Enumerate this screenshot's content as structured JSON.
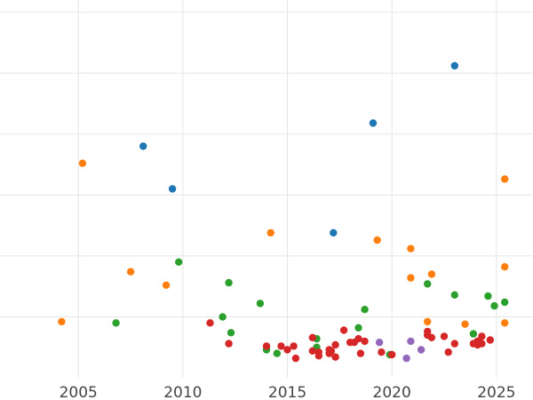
{
  "chart_data": {
    "type": "scatter",
    "title": "",
    "xlabel": "",
    "ylabel": "",
    "xlim": [
      2001.25,
      2026.75
    ],
    "ylim": [
      0,
      31
    ],
    "x_ticks": [
      {
        "value": 2005,
        "label": "2005"
      },
      {
        "value": 2010,
        "label": "2010"
      },
      {
        "value": 2015,
        "label": "2015"
      },
      {
        "value": 2020,
        "label": "2020"
      },
      {
        "value": 2025,
        "label": "2025"
      }
    ],
    "y_gridlines": [
      5,
      10,
      15,
      20,
      25,
      30
    ],
    "grid": true,
    "legend": "none",
    "series": [
      {
        "color": "#1f77b4",
        "points": [
          {
            "x": 2008.1,
            "y": 19.0
          },
          {
            "x": 2009.5,
            "y": 15.5
          },
          {
            "x": 2017.2,
            "y": 11.9
          },
          {
            "x": 2019.1,
            "y": 20.9
          },
          {
            "x": 2023.0,
            "y": 25.6
          }
        ]
      },
      {
        "color": "#ff7f0e",
        "points": [
          {
            "x": 2004.2,
            "y": 4.6
          },
          {
            "x": 2005.2,
            "y": 17.6
          },
          {
            "x": 2007.5,
            "y": 8.7
          },
          {
            "x": 2009.2,
            "y": 7.6
          },
          {
            "x": 2014.2,
            "y": 11.9
          },
          {
            "x": 2019.3,
            "y": 11.3
          },
          {
            "x": 2020.9,
            "y": 10.6
          },
          {
            "x": 2020.9,
            "y": 8.2
          },
          {
            "x": 2021.7,
            "y": 4.6
          },
          {
            "x": 2021.9,
            "y": 8.5
          },
          {
            "x": 2023.5,
            "y": 4.4
          },
          {
            "x": 2025.4,
            "y": 16.3
          },
          {
            "x": 2025.4,
            "y": 9.1
          },
          {
            "x": 2025.4,
            "y": 4.5
          }
        ]
      },
      {
        "color": "#2ca02c",
        "points": [
          {
            "x": 2006.8,
            "y": 4.5
          },
          {
            "x": 2009.8,
            "y": 9.5
          },
          {
            "x": 2011.9,
            "y": 5.0
          },
          {
            "x": 2012.2,
            "y": 7.8
          },
          {
            "x": 2012.3,
            "y": 3.7
          },
          {
            "x": 2013.7,
            "y": 6.1
          },
          {
            "x": 2014.0,
            "y": 2.3
          },
          {
            "x": 2014.5,
            "y": 2.0
          },
          {
            "x": 2016.4,
            "y": 3.2
          },
          {
            "x": 2016.4,
            "y": 2.5
          },
          {
            "x": 2018.4,
            "y": 4.1
          },
          {
            "x": 2018.7,
            "y": 5.6
          },
          {
            "x": 2019.9,
            "y": 1.9
          },
          {
            "x": 2021.7,
            "y": 7.7
          },
          {
            "x": 2023.0,
            "y": 6.8
          },
          {
            "x": 2023.9,
            "y": 3.6
          },
          {
            "x": 2024.6,
            "y": 6.7
          },
          {
            "x": 2024.9,
            "y": 5.9
          },
          {
            "x": 2025.4,
            "y": 6.2
          }
        ]
      },
      {
        "color": "#d62728",
        "points": [
          {
            "x": 2011.3,
            "y": 4.5
          },
          {
            "x": 2012.2,
            "y": 2.8
          },
          {
            "x": 2014.0,
            "y": 2.6
          },
          {
            "x": 2014.7,
            "y": 2.6
          },
          {
            "x": 2015.0,
            "y": 2.3
          },
          {
            "x": 2015.3,
            "y": 2.6
          },
          {
            "x": 2015.4,
            "y": 1.6
          },
          {
            "x": 2016.2,
            "y": 2.2
          },
          {
            "x": 2016.2,
            "y": 3.3
          },
          {
            "x": 2016.5,
            "y": 1.8
          },
          {
            "x": 2016.5,
            "y": 2.1
          },
          {
            "x": 2017.0,
            "y": 2.0
          },
          {
            "x": 2017.0,
            "y": 2.3
          },
          {
            "x": 2017.1,
            "y": 2.2
          },
          {
            "x": 2017.3,
            "y": 1.7
          },
          {
            "x": 2017.3,
            "y": 2.7
          },
          {
            "x": 2017.7,
            "y": 3.9
          },
          {
            "x": 2018.0,
            "y": 2.9
          },
          {
            "x": 2018.2,
            "y": 2.9
          },
          {
            "x": 2018.4,
            "y": 3.2
          },
          {
            "x": 2018.5,
            "y": 2.0
          },
          {
            "x": 2018.7,
            "y": 3.0
          },
          {
            "x": 2019.5,
            "y": 2.1
          },
          {
            "x": 2020.0,
            "y": 1.9
          },
          {
            "x": 2021.7,
            "y": 3.8
          },
          {
            "x": 2021.7,
            "y": 3.5
          },
          {
            "x": 2021.9,
            "y": 3.3
          },
          {
            "x": 2022.5,
            "y": 3.4
          },
          {
            "x": 2022.7,
            "y": 2.1
          },
          {
            "x": 2023.0,
            "y": 2.8
          },
          {
            "x": 2023.9,
            "y": 2.8
          },
          {
            "x": 2024.1,
            "y": 2.7
          },
          {
            "x": 2024.1,
            "y": 3.0
          },
          {
            "x": 2024.3,
            "y": 2.8
          },
          {
            "x": 2024.3,
            "y": 3.4
          },
          {
            "x": 2024.7,
            "y": 3.1
          }
        ]
      },
      {
        "color": "#9467bd",
        "points": [
          {
            "x": 2019.4,
            "y": 2.9
          },
          {
            "x": 2020.7,
            "y": 1.6
          },
          {
            "x": 2020.9,
            "y": 3.0
          },
          {
            "x": 2021.4,
            "y": 2.3
          }
        ]
      }
    ]
  }
}
